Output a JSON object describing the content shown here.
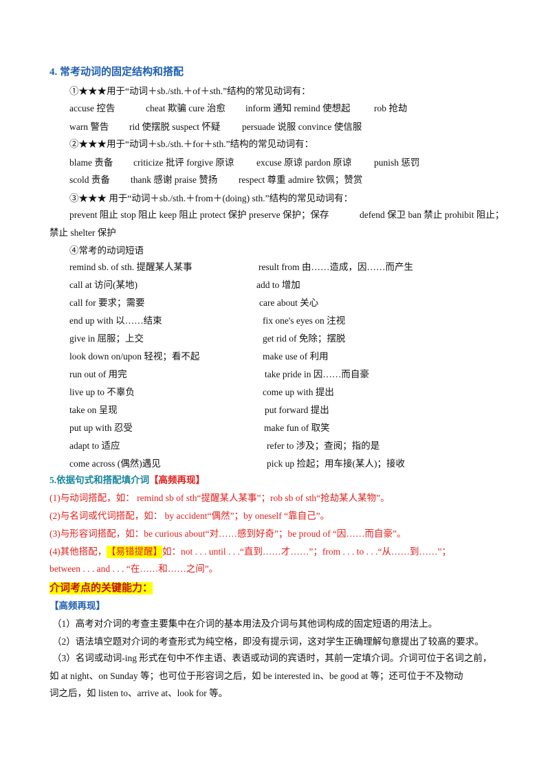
{
  "section4": {
    "title": "4.  常考动词的固定结构和搭配",
    "lines": [
      [
        "①★★★用于“动词＋sb./sth.＋of＋sth.”结构的常见动词有："
      ],
      [
        "accuse 控告",
        "cheat 欺骗 cure 治愈",
        "inform 通知 remind 使想起",
        "rob 抢劫"
      ],
      [
        "warn 警告",
        "rid 使摆脱 suspect 怀疑",
        "persuade 说服 convince 使信服"
      ],
      [
        "②★★★用于“动词＋sb./sth.＋for＋sth.”结构的常见动词有："
      ],
      [
        "blame 责备",
        "criticize 批评 forgive 原谅",
        "excuse 原谅 pardon 原谅",
        "punish 惩罚"
      ],
      [
        "scold 责备",
        "thank 感谢 praise 赞扬",
        "respect 尊重 admire 钦佩；赞赏"
      ],
      [
        "③★★★ 用于“动词＋sb./sth.＋from＋(doing) sth.”结构的常见动词有："
      ],
      [
        "prevent 阻止 stop 阻止 keep 阻止 protect 保护 preserve 保护；保存",
        "defend 保卫 ban 禁止 prohibit 阻止；"
      ],
      [
        "禁止 shelter 保护"
      ],
      [
        "④常考的动词短语"
      ]
    ],
    "phrases": [
      [
        "remind sb. of sth.   提醒某人某事",
        "result from   由……造成，因……而产生"
      ],
      [
        "call at 访问(某地)",
        "add to 增加"
      ],
      [
        "call for 要求；需要",
        "care about 关心"
      ],
      [
        "end up with 以……结束",
        "fix one's eyes on  注视"
      ],
      [
        "give in 屈服；上交",
        "get rid of 免除；摆脱"
      ],
      [
        "look down on/upon 轻视；看不起",
        "make use of 利用"
      ],
      [
        "run out of 用完",
        "take pride in 因……而自豪"
      ],
      [
        "live up to 不辜负",
        "come up with 提出"
      ],
      [
        "take on 呈现",
        "put forward 提出"
      ],
      [
        "put up with 忍受",
        "make fun of 取笑"
      ],
      [
        "adapt to 适应",
        "refer to 涉及；查阅；指的是"
      ],
      [
        "come across (偶然)遇见",
        "pick up 捡起；用车接(某人)；接收"
      ]
    ]
  },
  "section5": {
    "title": "5.依据句式和搭配填介词",
    "tag": "【高频再现】",
    "lines": [
      [
        "(1)与动词搭配，如： remind sb of sth“提醒某人某事”；rob sb of sth“抢劫某人某物”。"
      ],
      [
        "(2)与名词或代词搭配，如： by accident“偶然”；by oneself “靠自己”。"
      ],
      [
        "(3)与形容词搭配，如：be curious about“对……感到好奇”；be proud of “因……而自豪”。"
      ],
      [
        "(4)其他搭配，",
        "【易错提醒】",
        "如：not . . . until . . .“直到……才……”；from . . . to . . .“从……到……”；"
      ],
      [
        "between  . . . and . . .  “在……和……之间”。"
      ]
    ]
  },
  "ability": {
    "title": "介词考点的关键能力：",
    "tag": "【高频再现】",
    "lines": [
      "（1）高考对介词的考查主要集中在介词的基本用法及介词与其他词构成的固定短语的用法上。",
      "（2）语法填空题对介词的考查形式为纯空格，即没有提示词，这对学生正确理解句意提出了较高的要求。",
      "（3）名词或动词-ing 形式在句中不作主语、表语或动词的宾语时，其前一定填介词。介词可位于名词之前，",
      "如 at  night、on  Sunday 等；也可位于形容词之后，如 be  interested  in、be  good  at 等；还可位于不及物动",
      "词之后，如 listen  to、arrive  at、look  for 等。"
    ]
  }
}
